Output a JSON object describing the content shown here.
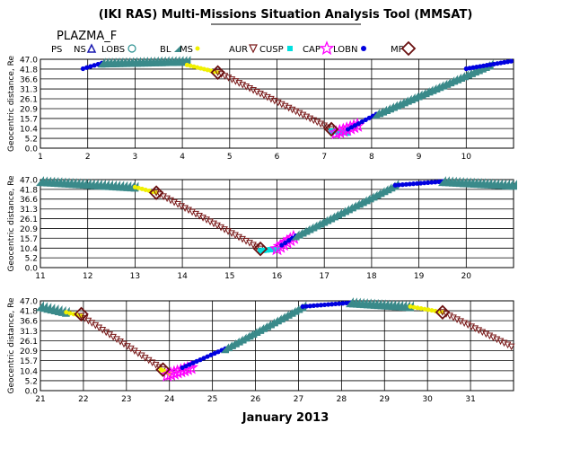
{
  "title": "(IKI RAS) Multi-Missions Situation Analysis Tool (MMSAT)",
  "mission": "PLAZMA_F",
  "xlabel": "January 2013",
  "ylabel": "Geocentric distance, Re",
  "legend": [
    {
      "code": "PS",
      "color": "#000000",
      "symbol": "none"
    },
    {
      "code": "NS",
      "color": "#1a1ab0",
      "symbol": "triangle"
    },
    {
      "code": "LOBS",
      "color": "#2a9090",
      "symbol": "circle"
    },
    {
      "code": "BL",
      "color": "#3a8a8a",
      "symbol": "triangle-filled"
    },
    {
      "code": "MS",
      "color": "#f0f000",
      "symbol": "dot"
    },
    {
      "code": "AUR",
      "color": "#7a1a1a",
      "symbol": "triangle-down"
    },
    {
      "code": "CUSP",
      "color": "#00e0e0",
      "symbol": "square"
    },
    {
      "code": "CAP",
      "color": "#ff00ff",
      "symbol": "star"
    },
    {
      "code": "LOBN",
      "color": "#0000e0",
      "symbol": "circle-filled"
    },
    {
      "code": "MP",
      "color": "#6a1010",
      "symbol": "diamond"
    }
  ],
  "chart_data": [
    {
      "type": "scatter",
      "xlim": [
        1,
        11
      ],
      "ylim": [
        0,
        47
      ],
      "xticks": [
        "1",
        "2",
        "3",
        "4",
        "5",
        "6",
        "7",
        "8",
        "9",
        "10"
      ],
      "yticks": [
        "0.0",
        "5.2",
        "10.4",
        "15.7",
        "20.9",
        "26.1",
        "31.3",
        "36.6",
        "41.8",
        "47.0"
      ],
      "segments": [
        {
          "region": "LOBN",
          "x": [
            1.9,
            2.3
          ],
          "y": [
            42,
            45
          ]
        },
        {
          "region": "BL",
          "x": [
            2.3,
            4.1
          ],
          "y": [
            45,
            46
          ]
        },
        {
          "region": "MS",
          "x": [
            4.1,
            4.75
          ],
          "y": [
            44,
            40
          ]
        },
        {
          "region": "AUR",
          "x": [
            4.75,
            7.15
          ],
          "y": [
            40,
            10
          ]
        },
        {
          "region": "CUSP",
          "x": [
            7.15,
            7.5
          ],
          "y": [
            9,
            8
          ]
        },
        {
          "region": "CAP",
          "x": [
            7.25,
            7.7
          ],
          "y": [
            8,
            12
          ]
        },
        {
          "region": "LOBN",
          "x": [
            7.5,
            8.1
          ],
          "y": [
            10,
            18
          ]
        },
        {
          "region": "BL",
          "x": [
            8.1,
            10.5
          ],
          "y": [
            18,
            44
          ]
        },
        {
          "region": "LOBN",
          "x": [
            10.0,
            10.95
          ],
          "y": [
            42,
            46
          ]
        }
      ],
      "mp_markers": [
        {
          "x": 4.75,
          "y": 40
        },
        {
          "x": 7.15,
          "y": 10
        }
      ]
    },
    {
      "type": "scatter",
      "xlim": [
        11,
        21
      ],
      "ylim": [
        0,
        47
      ],
      "xticks": [
        "11",
        "12",
        "13",
        "14",
        "15",
        "16",
        "17",
        "18",
        "19",
        "20"
      ],
      "yticks": [
        "0.0",
        "5.2",
        "10.4",
        "15.7",
        "20.9",
        "26.1",
        "31.3",
        "36.6",
        "41.8",
        "47.0"
      ],
      "segments": [
        {
          "region": "BL",
          "x": [
            11.0,
            13.0
          ],
          "y": [
            46,
            43
          ]
        },
        {
          "region": "MS",
          "x": [
            13.0,
            13.45
          ],
          "y": [
            43,
            40
          ]
        },
        {
          "region": "AUR",
          "x": [
            13.45,
            15.65
          ],
          "y": [
            40,
            10
          ]
        },
        {
          "region": "CUSP",
          "x": [
            15.65,
            16.0
          ],
          "y": [
            9,
            10
          ]
        },
        {
          "region": "CAP",
          "x": [
            16.0,
            16.35
          ],
          "y": [
            10,
            16
          ]
        },
        {
          "region": "LOBN",
          "x": [
            16.1,
            16.4
          ],
          "y": [
            12,
            17
          ]
        },
        {
          "region": "BL",
          "x": [
            16.4,
            18.5
          ],
          "y": [
            17,
            44
          ]
        },
        {
          "region": "LOBN",
          "x": [
            18.5,
            19.5
          ],
          "y": [
            44,
            46
          ]
        },
        {
          "region": "BL",
          "x": [
            19.5,
            21.0
          ],
          "y": [
            46,
            44
          ]
        }
      ],
      "mp_markers": [
        {
          "x": 13.45,
          "y": 40
        },
        {
          "x": 15.65,
          "y": 10
        }
      ]
    },
    {
      "type": "scatter",
      "xlim": [
        21,
        32
      ],
      "ylim": [
        0,
        47
      ],
      "xticks": [
        "21",
        "22",
        "23",
        "24",
        "25",
        "26",
        "27",
        "28",
        "29",
        "30",
        "31"
      ],
      "yticks": [
        "0.0",
        "5.2",
        "10.4",
        "15.7",
        "20.9",
        "26.1",
        "31.3",
        "36.6",
        "41.8",
        "47.0"
      ],
      "segments": [
        {
          "region": "BL",
          "x": [
            21.0,
            21.6
          ],
          "y": [
            44,
            41
          ]
        },
        {
          "region": "MS",
          "x": [
            21.6,
            21.95
          ],
          "y": [
            41,
            39
          ]
        },
        {
          "region": "AUR",
          "x": [
            21.95,
            23.85
          ],
          "y": [
            39,
            11
          ]
        },
        {
          "region": "MS",
          "x": [
            23.8,
            24.0
          ],
          "y": [
            11,
            9
          ]
        },
        {
          "region": "CAP",
          "x": [
            23.95,
            24.5
          ],
          "y": [
            8,
            12
          ]
        },
        {
          "region": "LOBN",
          "x": [
            24.3,
            25.3
          ],
          "y": [
            12,
            22
          ]
        },
        {
          "region": "BL",
          "x": [
            25.3,
            27.1
          ],
          "y": [
            22,
            44
          ]
        },
        {
          "region": "LOBN",
          "x": [
            27.1,
            28.2
          ],
          "y": [
            44,
            46
          ]
        },
        {
          "region": "BL",
          "x": [
            28.2,
            29.6
          ],
          "y": [
            46,
            44
          ]
        },
        {
          "region": "MS",
          "x": [
            29.6,
            30.35
          ],
          "y": [
            44,
            41
          ]
        },
        {
          "region": "AUR",
          "x": [
            30.35,
            31.95
          ],
          "y": [
            41,
            23
          ]
        }
      ],
      "mp_markers": [
        {
          "x": 21.95,
          "y": 40
        },
        {
          "x": 23.85,
          "y": 11
        },
        {
          "x": 30.35,
          "y": 41
        }
      ]
    }
  ]
}
